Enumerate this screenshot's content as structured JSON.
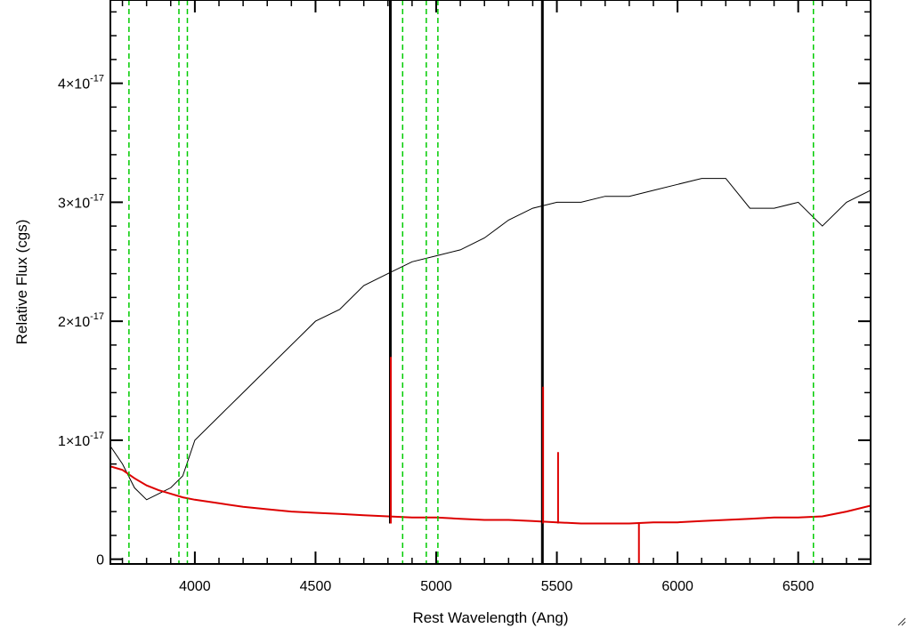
{
  "chart_data": {
    "type": "line",
    "title": "",
    "xlabel": "Rest Wavelength (Ang)",
    "ylabel": "Relative Flux (cgs)",
    "xlim": [
      3650,
      6800
    ],
    "ylim": [
      -4e-19,
      4.7e-17
    ],
    "x_ticks": [
      {
        "value": 4000,
        "label": "4000"
      },
      {
        "value": 4500,
        "label": "4500"
      },
      {
        "value": 5000,
        "label": "5000"
      },
      {
        "value": 5500,
        "label": "5500"
      },
      {
        "value": 6000,
        "label": "6000"
      },
      {
        "value": 6500,
        "label": "6500"
      }
    ],
    "y_ticks": [
      {
        "value": 0,
        "mantissa": "0",
        "exp": ""
      },
      {
        "value": 1e-17,
        "mantissa": "1×10",
        "exp": "-17"
      },
      {
        "value": 2e-17,
        "mantissa": "2×10",
        "exp": "-17"
      },
      {
        "value": 3e-17,
        "mantissa": "3×10",
        "exp": "-17"
      },
      {
        "value": 4e-17,
        "mantissa": "4×10",
        "exp": "-17"
      }
    ],
    "series": [
      {
        "color": "#000000",
        "x": [
          3650,
          3700,
          3750,
          3800,
          3850,
          3900,
          3950,
          4000,
          4100,
          4200,
          4300,
          4400,
          4500,
          4600,
          4700,
          4800,
          4900,
          5000,
          5100,
          5200,
          5300,
          5400,
          5500,
          5600,
          5700,
          5800,
          5900,
          6000,
          6100,
          6200,
          6300,
          6400,
          6500,
          6550,
          6600,
          6700,
          6800
        ],
        "y": [
          9.5e-18,
          8e-18,
          6e-18,
          5e-18,
          5.5e-18,
          6e-18,
          7e-18,
          1e-17,
          1.2e-17,
          1.4e-17,
          1.6e-17,
          1.8e-17,
          2e-17,
          2.1e-17,
          2.3e-17,
          2.4e-17,
          2.5e-17,
          2.55e-17,
          2.6e-17,
          2.7e-17,
          2.85e-17,
          2.95e-17,
          3e-17,
          3e-17,
          3.05e-17,
          3.05e-17,
          3.1e-17,
          3.15e-17,
          3.2e-17,
          3.2e-17,
          2.95e-17,
          2.95e-17,
          3e-17,
          2.9e-17,
          2.8e-17,
          3e-17,
          3.1e-17
        ]
      },
      {
        "color": "#dd0000",
        "x": [
          3650,
          3700,
          3750,
          3800,
          3850,
          3900,
          3950,
          4000,
          4100,
          4200,
          4300,
          4400,
          4500,
          4600,
          4700,
          4800,
          4900,
          5000,
          5100,
          5200,
          5300,
          5400,
          5500,
          5600,
          5700,
          5800,
          5900,
          6000,
          6100,
          6200,
          6300,
          6400,
          6500,
          6600,
          6700,
          6800
        ],
        "y": [
          7.8e-18,
          7.5e-18,
          6.8e-18,
          6.2e-18,
          5.8e-18,
          5.5e-18,
          5.2e-18,
          5e-18,
          4.7e-18,
          4.4e-18,
          4.2e-18,
          4e-18,
          3.9e-18,
          3.8e-18,
          3.7e-18,
          3.6e-18,
          3.5e-18,
          3.5e-18,
          3.4e-18,
          3.3e-18,
          3.3e-18,
          3.2e-18,
          3.1e-18,
          3e-18,
          3e-18,
          3e-18,
          3.1e-18,
          3.1e-18,
          3.2e-18,
          3.3e-18,
          3.4e-18,
          3.5e-18,
          3.5e-18,
          3.6e-18,
          4e-18,
          4.5e-18
        ]
      }
    ],
    "spikes": [
      {
        "x": 4810,
        "y0": 3e-18,
        "y1": 4.7e-17,
        "color": "#000000"
      },
      {
        "x": 4812,
        "y0": 3e-18,
        "y1": 1.7e-17,
        "color": "#dd0000"
      },
      {
        "x": 5440,
        "y0": -4e-19,
        "y1": 4.7e-17,
        "color": "#000000"
      },
      {
        "x": 5443,
        "y0": 3e-18,
        "y1": 1.45e-17,
        "color": "#dd0000"
      },
      {
        "x": 5505,
        "y0": 3e-18,
        "y1": 9e-18,
        "color": "#dd0000"
      },
      {
        "x": 5840,
        "y0": -4e-19,
        "y1": 3e-18,
        "color": "#dd0000"
      }
    ],
    "vlines": {
      "color": "#00cc00",
      "x": [
        3727,
        3934,
        3969,
        4861,
        4959,
        5007,
        6563
      ]
    },
    "grid": false,
    "legend": "none"
  }
}
